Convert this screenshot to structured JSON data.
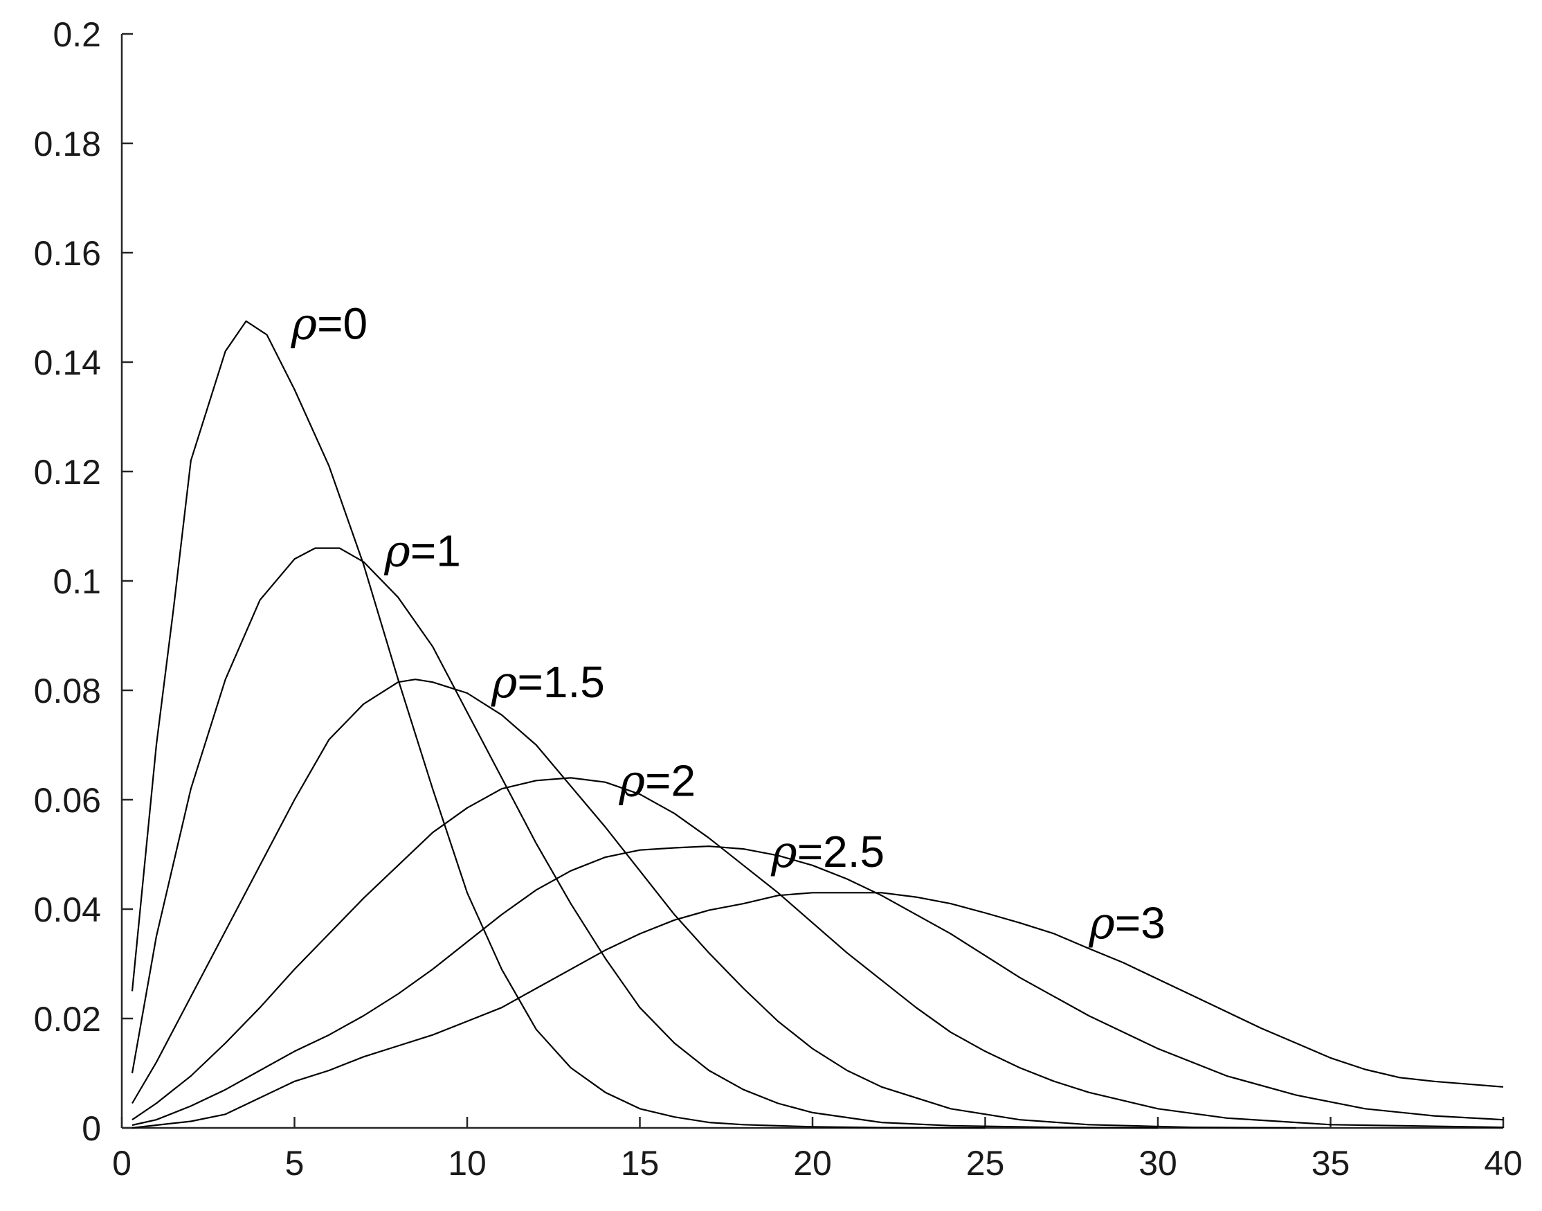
{
  "chart_data": {
    "type": "line",
    "title": "",
    "xlabel": "",
    "ylabel": "",
    "xlim": [
      0,
      40
    ],
    "ylim": [
      0,
      0.2
    ],
    "x_ticks": [
      0,
      5,
      10,
      15,
      20,
      25,
      30,
      35,
      40
    ],
    "x_tick_labels": [
      "0",
      "5",
      "10",
      "15",
      "20",
      "25",
      "30",
      "35",
      "40"
    ],
    "y_ticks": [
      0,
      0.02,
      0.04,
      0.06,
      0.08,
      0.1,
      0.12,
      0.14,
      0.16,
      0.18,
      0.2
    ],
    "y_tick_labels": [
      "0",
      "0.02",
      "0.04",
      "0.06",
      "0.08",
      "0.1",
      "0.12",
      "0.14",
      "0.16",
      "0.18",
      "0.2"
    ],
    "grid": false,
    "legend": "none (curves labeled inline)",
    "line_color": "#000000",
    "series": [
      {
        "label_symbol": "ρ",
        "label_value": "=0",
        "label_anchor": [
          4.9,
          0.147
        ],
        "points": [
          [
            0.3,
            0.025
          ],
          [
            1,
            0.07
          ],
          [
            1.5,
            0.095
          ],
          [
            2,
            0.122
          ],
          [
            3,
            0.142
          ],
          [
            3.6,
            0.1475
          ],
          [
            4.2,
            0.145
          ],
          [
            5,
            0.135
          ],
          [
            6,
            0.121
          ],
          [
            7,
            0.103
          ],
          [
            8,
            0.082
          ],
          [
            9,
            0.062
          ],
          [
            10,
            0.043
          ],
          [
            11,
            0.029
          ],
          [
            12,
            0.018
          ],
          [
            13,
            0.011
          ],
          [
            14,
            0.0065
          ],
          [
            15,
            0.0035
          ],
          [
            16,
            0.002
          ],
          [
            17,
            0.001
          ],
          [
            18,
            0.0006
          ],
          [
            20,
            0.0002
          ],
          [
            22,
            5e-05
          ],
          [
            25,
            0
          ]
        ]
      },
      {
        "label_symbol": "ρ",
        "label_value": "=1",
        "label_anchor": [
          7.6,
          0.1055
        ],
        "points": [
          [
            0.3,
            0.01
          ],
          [
            1,
            0.035
          ],
          [
            2,
            0.062
          ],
          [
            3,
            0.082
          ],
          [
            4,
            0.0965
          ],
          [
            5,
            0.104
          ],
          [
            5.6,
            0.106
          ],
          [
            6.3,
            0.106
          ],
          [
            7,
            0.1035
          ],
          [
            8,
            0.097
          ],
          [
            9,
            0.088
          ],
          [
            10,
            0.076
          ],
          [
            11,
            0.064
          ],
          [
            12,
            0.052
          ],
          [
            13,
            0.041
          ],
          [
            14,
            0.031
          ],
          [
            15,
            0.022
          ],
          [
            16,
            0.0155
          ],
          [
            17,
            0.0105
          ],
          [
            18,
            0.007
          ],
          [
            19,
            0.0045
          ],
          [
            20,
            0.0028
          ],
          [
            22,
            0.001
          ],
          [
            24,
            0.0004
          ],
          [
            27,
            0.0001
          ],
          [
            30,
            0
          ]
        ]
      },
      {
        "label_symbol": "ρ",
        "label_value": "=1.5",
        "label_anchor": [
          10.7,
          0.0815
        ],
        "points": [
          [
            0.3,
            0.0045
          ],
          [
            1,
            0.012
          ],
          [
            2,
            0.024
          ],
          [
            3,
            0.036
          ],
          [
            4,
            0.048
          ],
          [
            5,
            0.06
          ],
          [
            6,
            0.071
          ],
          [
            7,
            0.0775
          ],
          [
            8,
            0.0815
          ],
          [
            8.5,
            0.082
          ],
          [
            9,
            0.0815
          ],
          [
            10,
            0.0795
          ],
          [
            11,
            0.0755
          ],
          [
            12,
            0.07
          ],
          [
            13,
            0.0625
          ],
          [
            14,
            0.055
          ],
          [
            15,
            0.047
          ],
          [
            16,
            0.039
          ],
          [
            17,
            0.032
          ],
          [
            18,
            0.0255
          ],
          [
            19,
            0.0195
          ],
          [
            20,
            0.0145
          ],
          [
            21,
            0.0105
          ],
          [
            22,
            0.0075
          ],
          [
            24,
            0.0035
          ],
          [
            26,
            0.0015
          ],
          [
            28,
            0.0006
          ],
          [
            31,
            0.0001
          ],
          [
            34,
            0
          ]
        ]
      },
      {
        "label_symbol": "ρ",
        "label_value": "=2",
        "label_anchor": [
          14.4,
          0.0635
        ],
        "points": [
          [
            0.3,
            0.0015
          ],
          [
            1,
            0.0045
          ],
          [
            2,
            0.0095
          ],
          [
            3,
            0.0155
          ],
          [
            4,
            0.022
          ],
          [
            5,
            0.029
          ],
          [
            6,
            0.0355
          ],
          [
            7,
            0.042
          ],
          [
            8,
            0.048
          ],
          [
            9,
            0.054
          ],
          [
            10,
            0.0585
          ],
          [
            11,
            0.062
          ],
          [
            12,
            0.0635
          ],
          [
            13,
            0.064
          ],
          [
            14,
            0.0632
          ],
          [
            15,
            0.061
          ],
          [
            16,
            0.0575
          ],
          [
            17,
            0.053
          ],
          [
            18,
            0.048
          ],
          [
            19,
            0.043
          ],
          [
            20,
            0.0375
          ],
          [
            21,
            0.032
          ],
          [
            22,
            0.027
          ],
          [
            23,
            0.022
          ],
          [
            24,
            0.0175
          ],
          [
            25,
            0.014
          ],
          [
            26,
            0.011
          ],
          [
            27,
            0.0085
          ],
          [
            28,
            0.0065
          ],
          [
            30,
            0.0035
          ],
          [
            32,
            0.0018
          ],
          [
            35,
            0.0006
          ],
          [
            40,
            0.0001
          ]
        ]
      },
      {
        "label_symbol": "ρ",
        "label_value": "=2.5",
        "label_anchor": [
          18.8,
          0.0505
        ],
        "points": [
          [
            0.3,
            0.0005
          ],
          [
            1,
            0.0015
          ],
          [
            2,
            0.004
          ],
          [
            3,
            0.007
          ],
          [
            4,
            0.0105
          ],
          [
            5,
            0.014
          ],
          [
            6,
            0.017
          ],
          [
            7,
            0.0205
          ],
          [
            8,
            0.0245
          ],
          [
            9,
            0.029
          ],
          [
            10,
            0.034
          ],
          [
            11,
            0.039
          ],
          [
            12,
            0.0435
          ],
          [
            13,
            0.047
          ],
          [
            14,
            0.0495
          ],
          [
            15,
            0.0508
          ],
          [
            16,
            0.0512
          ],
          [
            17,
            0.0515
          ],
          [
            18,
            0.051
          ],
          [
            19,
            0.0498
          ],
          [
            20,
            0.048
          ],
          [
            21,
            0.0455
          ],
          [
            22,
            0.0425
          ],
          [
            23,
            0.039
          ],
          [
            24,
            0.0355
          ],
          [
            25,
            0.0315
          ],
          [
            26,
            0.0275
          ],
          [
            27,
            0.024
          ],
          [
            28,
            0.0205
          ],
          [
            29,
            0.0175
          ],
          [
            30,
            0.0145
          ],
          [
            32,
            0.0095
          ],
          [
            34,
            0.006
          ],
          [
            36,
            0.0035
          ],
          [
            38,
            0.0022
          ],
          [
            40,
            0.0015
          ]
        ]
      },
      {
        "label_symbol": "ρ",
        "label_value": "=3",
        "label_anchor": [
          28.0,
          0.0375
        ],
        "points": [
          [
            0.3,
            0
          ],
          [
            1,
            0.0005
          ],
          [
            2,
            0.0012
          ],
          [
            3,
            0.0025
          ],
          [
            4,
            0.0055
          ],
          [
            5,
            0.0085
          ],
          [
            6,
            0.0105
          ],
          [
            7,
            0.013
          ],
          [
            8,
            0.015
          ],
          [
            9,
            0.017
          ],
          [
            10,
            0.0195
          ],
          [
            11,
            0.022
          ],
          [
            12,
            0.0255
          ],
          [
            13,
            0.029
          ],
          [
            14,
            0.0325
          ],
          [
            15,
            0.0355
          ],
          [
            16,
            0.038
          ],
          [
            17,
            0.0398
          ],
          [
            18,
            0.041
          ],
          [
            19,
            0.0425
          ],
          [
            20,
            0.043
          ],
          [
            21,
            0.043
          ],
          [
            22,
            0.043
          ],
          [
            23,
            0.0422
          ],
          [
            24,
            0.041
          ],
          [
            25,
            0.0393
          ],
          [
            26,
            0.0375
          ],
          [
            27,
            0.0355
          ],
          [
            28,
            0.0328
          ],
          [
            29,
            0.0302
          ],
          [
            30,
            0.0272
          ],
          [
            31,
            0.0242
          ],
          [
            32,
            0.0212
          ],
          [
            33,
            0.0182
          ],
          [
            34,
            0.0155
          ],
          [
            35,
            0.0128
          ],
          [
            36,
            0.0107
          ],
          [
            37,
            0.0092
          ],
          [
            38,
            0.0085
          ],
          [
            39,
            0.008
          ],
          [
            40,
            0.0075
          ]
        ]
      }
    ]
  }
}
